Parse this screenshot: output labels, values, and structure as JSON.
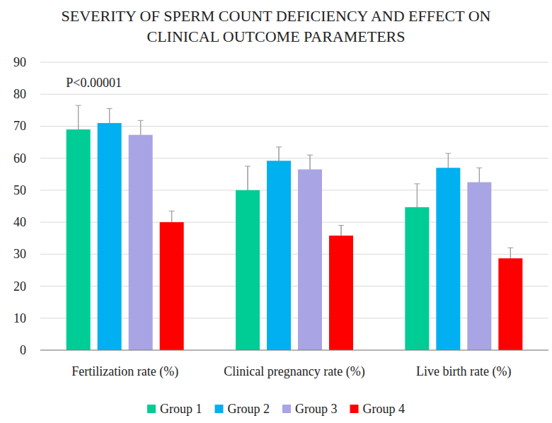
{
  "chart_data": {
    "type": "bar",
    "title": "SEVERITY OF SPERM COUNT DEFICIENCY AND EFFECT ON CLINICAL OUTCOME PARAMETERS",
    "annotation": "P<0.00001",
    "categories": [
      "Fertilization rate (%)",
      "Clinical pregnancy rate (%)",
      "Live birth rate (%)"
    ],
    "series": [
      {
        "name": "Group 1",
        "color": "#00cc96",
        "values": [
          69,
          50,
          44.7
        ],
        "errors": [
          7.5,
          7.5,
          7.3
        ]
      },
      {
        "name": "Group 2",
        "color": "#00b0f0",
        "values": [
          71,
          59.2,
          57
        ],
        "errors": [
          4.5,
          4.3,
          4.5
        ]
      },
      {
        "name": "Group 3",
        "color": "#a9a4e4",
        "values": [
          67.3,
          56.5,
          52.5
        ],
        "errors": [
          4.5,
          4.5,
          4.5
        ]
      },
      {
        "name": "Group 4",
        "color": "#ff0000",
        "values": [
          40,
          35.8,
          28.7
        ],
        "errors": [
          3.5,
          3.2,
          3.3
        ]
      }
    ],
    "ylim": [
      0,
      90
    ],
    "yticks": [
      0,
      10,
      20,
      30,
      40,
      50,
      60,
      70,
      80,
      90
    ],
    "grid": true,
    "legend": "bottom"
  }
}
